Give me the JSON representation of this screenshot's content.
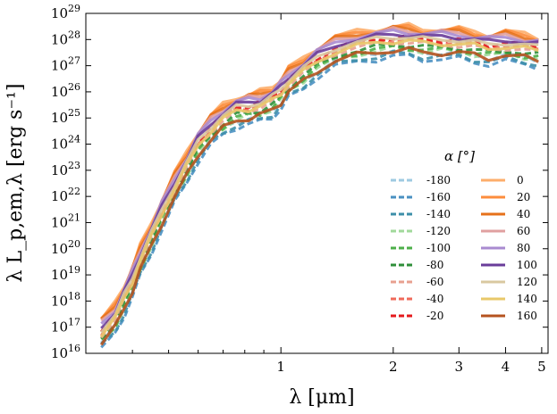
{
  "chart_data": {
    "type": "line",
    "title": "",
    "xlabel": "λ [μm]",
    "ylabel": "λ L_p,em,λ [erg s⁻¹]",
    "xscale": "log",
    "yscale": "log",
    "xlim": [
      0.3,
      5.2
    ],
    "ylim": [
      1e+16,
      1e+29
    ],
    "x_ticks": [
      {
        "value": 1,
        "label": "1"
      },
      {
        "value": 2,
        "label": "2"
      },
      {
        "value": 3,
        "label": "3"
      },
      {
        "value": 4,
        "label": "4"
      },
      {
        "value": 5,
        "label": "5"
      }
    ],
    "y_ticks": [
      {
        "exp": 16,
        "label": "10"
      },
      {
        "exp": 17,
        "label": "10"
      },
      {
        "exp": 18,
        "label": "10"
      },
      {
        "exp": 19,
        "label": "10"
      },
      {
        "exp": 20,
        "label": "10"
      },
      {
        "exp": 21,
        "label": "10"
      },
      {
        "exp": 22,
        "label": "10"
      },
      {
        "exp": 23,
        "label": "10"
      },
      {
        "exp": 24,
        "label": "10"
      },
      {
        "exp": 25,
        "label": "10"
      },
      {
        "exp": 26,
        "label": "10"
      },
      {
        "exp": 27,
        "label": "10"
      },
      {
        "exp": 28,
        "label": "10"
      },
      {
        "exp": 29,
        "label": "10"
      }
    ],
    "legend": {
      "title": "α [°]",
      "position": "lower-right",
      "columns": 2
    },
    "template_log_spectrum": {
      "x": [
        0.33,
        0.36,
        0.38,
        0.4,
        0.42,
        0.45,
        0.48,
        0.52,
        0.56,
        0.6,
        0.65,
        0.7,
        0.76,
        0.82,
        0.88,
        0.95,
        1.0,
        1.05,
        1.15,
        1.25,
        1.4,
        1.6,
        1.8,
        2.0,
        2.2,
        2.4,
        2.7,
        3.0,
        3.3,
        3.6,
        4.0,
        4.5,
        4.9
      ],
      "log_y": [
        17.0,
        17.6,
        18.3,
        19.0,
        19.8,
        20.7,
        21.6,
        22.6,
        23.4,
        24.2,
        24.8,
        25.2,
        25.5,
        25.6,
        25.7,
        25.9,
        26.2,
        26.6,
        27.0,
        27.4,
        27.8,
        28.0,
        28.1,
        28.2,
        28.2,
        28.1,
        28.1,
        28.1,
        28.0,
        27.9,
        28.0,
        27.9,
        27.8
      ]
    },
    "series": [
      {
        "name": "-180",
        "alpha": -180,
        "style": "dashed",
        "color": "#9ecae1",
        "log_offset": -0.6
      },
      {
        "name": "-160",
        "alpha": -160,
        "style": "dashed",
        "color": "#4a90c2",
        "log_offset": -0.85
      },
      {
        "name": "-140",
        "alpha": -140,
        "style": "dashed",
        "color": "#3d8fa8",
        "log_offset": -0.75
      },
      {
        "name": "-120",
        "alpha": -120,
        "style": "dashed",
        "color": "#a1d99b",
        "log_offset": -0.55
      },
      {
        "name": "-100",
        "alpha": -100,
        "style": "dashed",
        "color": "#4daf4a",
        "log_offset": -0.5
      },
      {
        "name": "-80",
        "alpha": -80,
        "style": "dashed",
        "color": "#2f8f3a",
        "log_offset": -0.4
      },
      {
        "name": "-60",
        "alpha": -60,
        "style": "dashed",
        "color": "#e8a090",
        "log_offset": -0.3
      },
      {
        "name": "-40",
        "alpha": -40,
        "style": "dashed",
        "color": "#ef6a5a",
        "log_offset": -0.2
      },
      {
        "name": "-20",
        "alpha": -20,
        "style": "dashed",
        "color": "#e41a1c",
        "log_offset": -0.1
      },
      {
        "name": "0",
        "alpha": 0,
        "style": "solid",
        "color": "#fdae6b",
        "log_offset": 0.3
      },
      {
        "name": "20",
        "alpha": 20,
        "style": "solid",
        "color": "#fd8d3c",
        "log_offset": 0.25
      },
      {
        "name": "40",
        "alpha": 40,
        "style": "solid",
        "color": "#e6711a",
        "log_offset": 0.2
      },
      {
        "name": "60",
        "alpha": 60,
        "style": "solid",
        "color": "#e0a0a0",
        "log_offset": 0.15
      },
      {
        "name": "80",
        "alpha": 80,
        "style": "solid",
        "color": "#a98bd0",
        "log_offset": 0.1
      },
      {
        "name": "100",
        "alpha": 100,
        "style": "solid",
        "color": "#6a3d9a",
        "log_offset": 0.0
      },
      {
        "name": "120",
        "alpha": 120,
        "style": "solid",
        "color": "#d9c8a0",
        "log_offset": -0.1
      },
      {
        "name": "140",
        "alpha": 140,
        "style": "solid",
        "color": "#e8c86a",
        "log_offset": -0.25
      },
      {
        "name": "160",
        "alpha": 160,
        "style": "solid",
        "color": "#b5531f",
        "log_offset": -0.6
      }
    ]
  }
}
